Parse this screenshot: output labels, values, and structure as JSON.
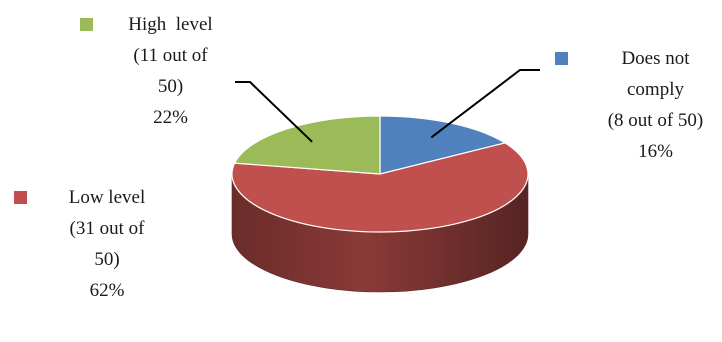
{
  "chart_data": {
    "type": "pie",
    "style": "3d",
    "slices": [
      {
        "label": "Does not comply",
        "count": "8 out of 50",
        "value": 16,
        "color": "#4f81bd",
        "text_lines": [
          "Does not",
          "comply",
          "(8 out of 50)",
          "16%"
        ]
      },
      {
        "label": "Low level",
        "count": "31 out of 50",
        "value": 62,
        "color": "#c0504d",
        "text_lines": [
          "Low level",
          "(31 out of",
          "50)",
          "62%"
        ]
      },
      {
        "label": "High level",
        "count": "11 out of 50",
        "value": 22,
        "color": "#9bbb59",
        "text_lines": [
          "High  level",
          "(11 out of",
          "50)",
          "22%"
        ]
      }
    ]
  }
}
